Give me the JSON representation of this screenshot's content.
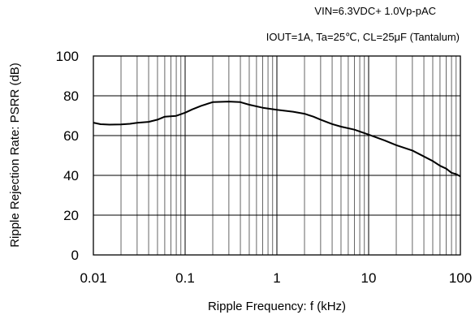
{
  "chart_data": {
    "type": "line",
    "conditions": [
      "VIN=6.3VDC+ 1.0Vp-pAC",
      "IOUT=1A, Ta=25℃, CL=25μF (Tantalum)"
    ],
    "xlabel": "Ripple Frequency: f (kHz)",
    "ylabel": "Ripple Rejection Rate: PSRR (dB)",
    "x_scale": "log",
    "xlim": [
      0.01,
      100
    ],
    "ylim": [
      0,
      100
    ],
    "x_ticks": [
      {
        "value": 0.01,
        "label": "0.01"
      },
      {
        "value": 0.1,
        "label": "0.1"
      },
      {
        "value": 1,
        "label": "1"
      },
      {
        "value": 10,
        "label": "10"
      },
      {
        "value": 100,
        "label": "100"
      }
    ],
    "y_ticks": [
      {
        "value": 0,
        "label": "0"
      },
      {
        "value": 20,
        "label": "20"
      },
      {
        "value": 40,
        "label": "40"
      },
      {
        "value": 60,
        "label": "60"
      },
      {
        "value": 80,
        "label": "80"
      },
      {
        "value": 100,
        "label": "100"
      }
    ],
    "grid": true,
    "series": [
      {
        "color": "#000000",
        "points": [
          [
            0.01,
            66.5
          ],
          [
            0.012,
            65.7
          ],
          [
            0.015,
            65.5
          ],
          [
            0.02,
            65.6
          ],
          [
            0.025,
            65.9
          ],
          [
            0.03,
            66.4
          ],
          [
            0.04,
            66.9
          ],
          [
            0.05,
            68.0
          ],
          [
            0.06,
            69.5
          ],
          [
            0.08,
            69.9
          ],
          [
            0.1,
            71.5
          ],
          [
            0.12,
            73.2
          ],
          [
            0.15,
            75.0
          ],
          [
            0.2,
            76.8
          ],
          [
            0.3,
            77.1
          ],
          [
            0.4,
            76.8
          ],
          [
            0.5,
            75.5
          ],
          [
            0.7,
            74.0
          ],
          [
            1.0,
            73.0
          ],
          [
            1.5,
            72.0
          ],
          [
            2.0,
            71.0
          ],
          [
            2.5,
            69.5
          ],
          [
            3.0,
            68.0
          ],
          [
            4.0,
            65.8
          ],
          [
            5.0,
            64.5
          ],
          [
            7.0,
            63.0
          ],
          [
            10.0,
            60.5
          ],
          [
            15.0,
            57.5
          ],
          [
            20.0,
            55.2
          ],
          [
            30.0,
            52.5
          ],
          [
            40.0,
            49.5
          ],
          [
            50.0,
            47.2
          ],
          [
            60.0,
            44.8
          ],
          [
            70.0,
            43.4
          ],
          [
            80.0,
            41.3
          ],
          [
            90.0,
            40.6
          ],
          [
            100.0,
            39.5
          ]
        ]
      }
    ]
  }
}
